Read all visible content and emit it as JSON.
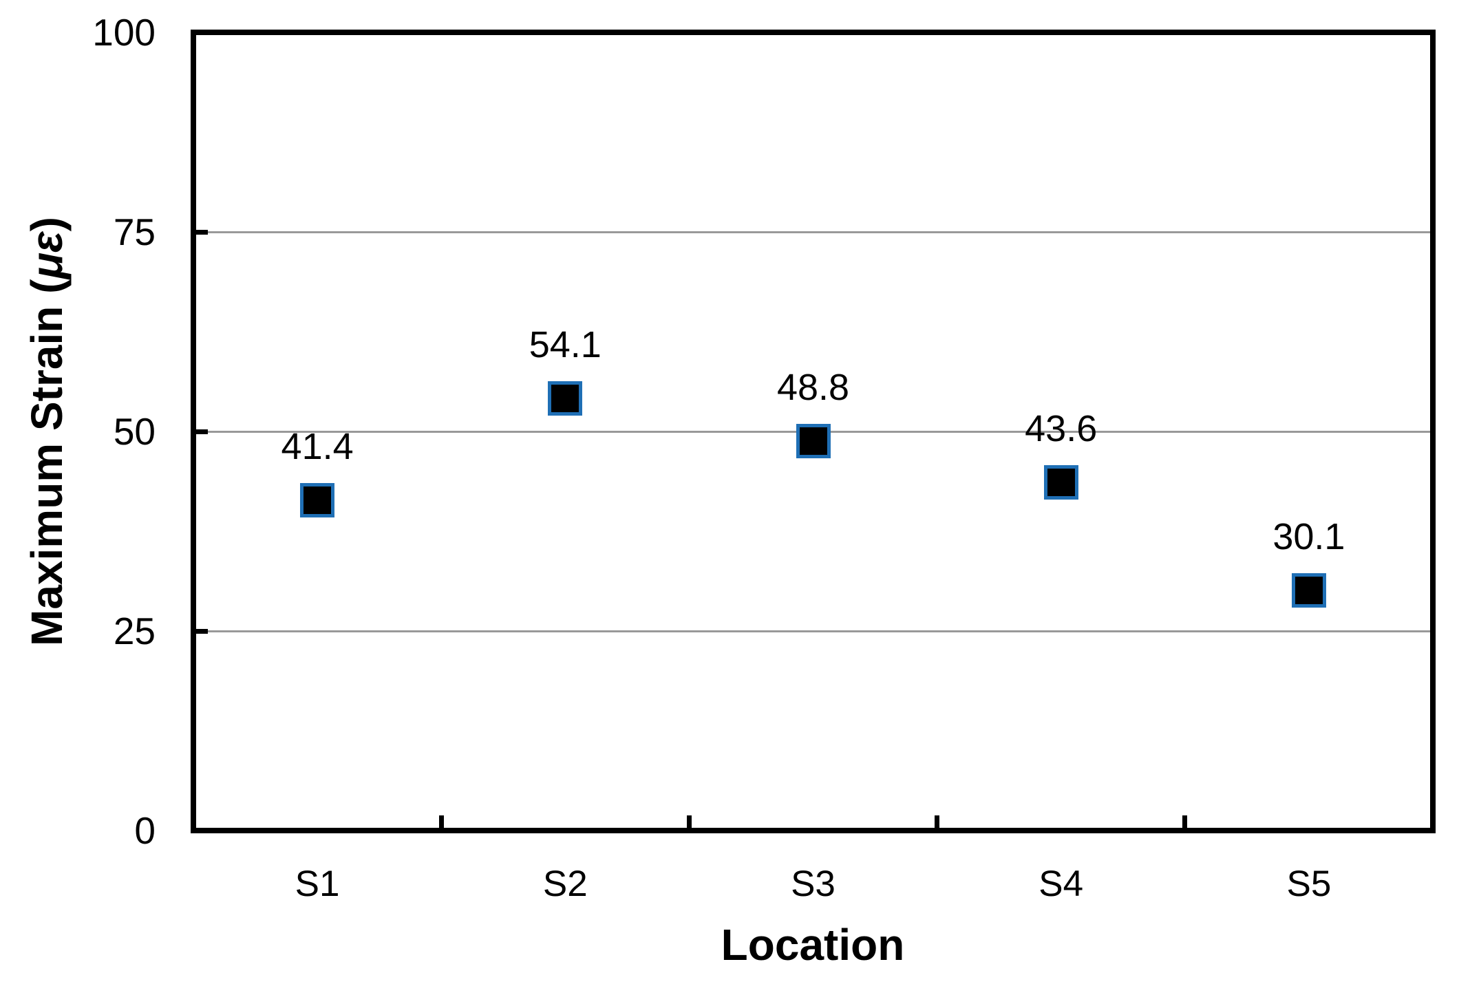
{
  "chart_data": {
    "type": "scatter",
    "categories": [
      "S1",
      "S2",
      "S3",
      "S4",
      "S5"
    ],
    "values": [
      41.4,
      54.1,
      48.8,
      43.6,
      30.1
    ],
    "data_labels": [
      "41.4",
      "54.1",
      "48.8",
      "43.6",
      "30.1"
    ],
    "xlabel": "Location",
    "ylabel": "Maximum Strain (με)",
    "ylabel_parts": {
      "prefix": "Maximum Strain (",
      "unit": "με",
      "suffix": ")"
    },
    "ylim": [
      0,
      100
    ],
    "ytick_labels": [
      "0",
      "25",
      "50",
      "75",
      "100"
    ],
    "ytick_values": [
      0,
      25,
      50,
      75,
      100
    ],
    "gridline_values": [
      25,
      50,
      75
    ],
    "grid": "horizontal-only",
    "legend_position": "none",
    "marker_shape": "square",
    "colors": {
      "marker_fill": "#000000",
      "marker_stroke": "#1F6FB5",
      "gridline": "#999999",
      "axis": "#000000",
      "text": "#000000"
    }
  }
}
